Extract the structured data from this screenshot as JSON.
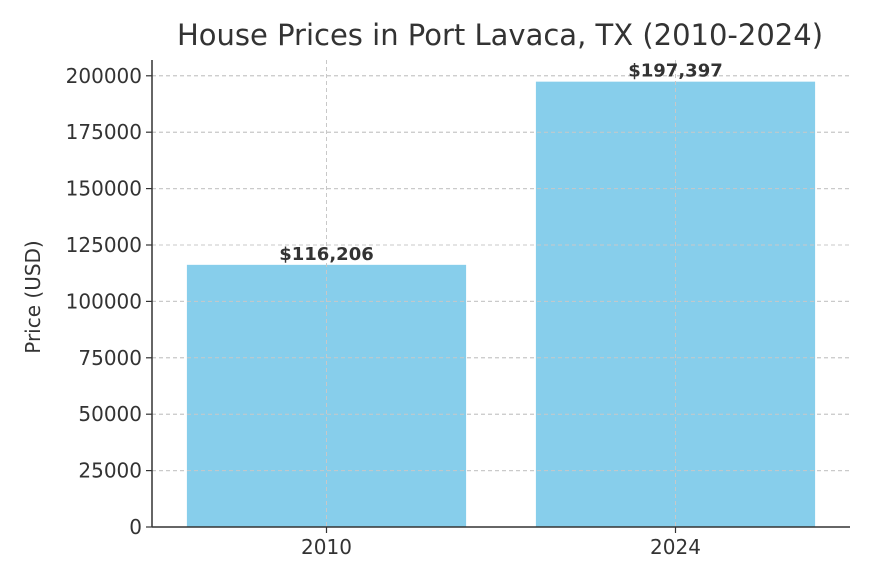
{
  "chart_data": {
    "type": "bar",
    "title": "House Prices in Port Lavaca, TX (2010-2024)",
    "xlabel": "",
    "ylabel": "Price (USD)",
    "categories": [
      "2010",
      "2024"
    ],
    "values": [
      116206,
      197397
    ],
    "data_labels": [
      "$116,206",
      "$197,397"
    ],
    "ylim": [
      0,
      207000
    ],
    "yticks": [
      0,
      25000,
      50000,
      75000,
      100000,
      125000,
      150000,
      175000,
      200000
    ],
    "ytick_labels": [
      "0",
      "25000",
      "50000",
      "75000",
      "100000",
      "125000",
      "150000",
      "175000",
      "200000"
    ],
    "grid": true,
    "bar_color": "#87CEEB",
    "text_color": "#333333"
  }
}
